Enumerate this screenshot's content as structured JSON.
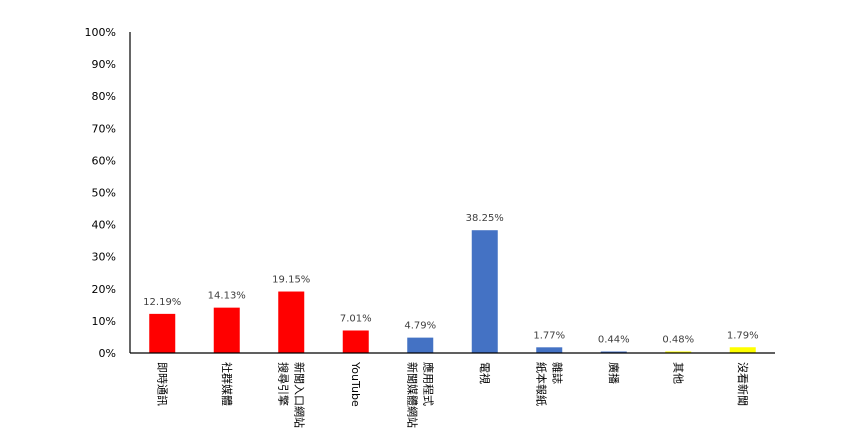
{
  "chart_data": {
    "type": "bar",
    "title": "",
    "xlabel": "",
    "ylabel": "",
    "ylim": [
      0,
      100
    ],
    "yticks": [
      "0%",
      "10%",
      "20%",
      "30%",
      "40%",
      "50%",
      "60%",
      "70%",
      "80%",
      "90%",
      "100%"
    ],
    "grid": false,
    "legend": "none",
    "categories": [
      [
        "即時通訊"
      ],
      [
        "社群媒體"
      ],
      [
        "新聞入口網站",
        "搜尋引擎"
      ],
      [
        "YouTube"
      ],
      [
        "應用程式",
        "新聞媒體網站"
      ],
      [
        "電視"
      ],
      [
        "雜誌",
        "紙本報紙"
      ],
      [
        "廣播"
      ],
      [
        "其他"
      ],
      [
        "沒看新聞"
      ]
    ],
    "values": [
      12.19,
      14.13,
      19.15,
      7.01,
      4.79,
      38.25,
      1.77,
      0.44,
      0.48,
      1.79
    ],
    "data_labels": [
      "12.19%",
      "14.13%",
      "19.15%",
      "7.01%",
      "4.79%",
      "38.25%",
      "1.77%",
      "0.44%",
      "0.48%",
      "1.79%"
    ],
    "colors": [
      "#ff0000",
      "#ff0000",
      "#ff0000",
      "#ff0000",
      "#4472c4",
      "#4472c4",
      "#4472c4",
      "#4472c4",
      "#ffff00",
      "#ffff00"
    ]
  }
}
